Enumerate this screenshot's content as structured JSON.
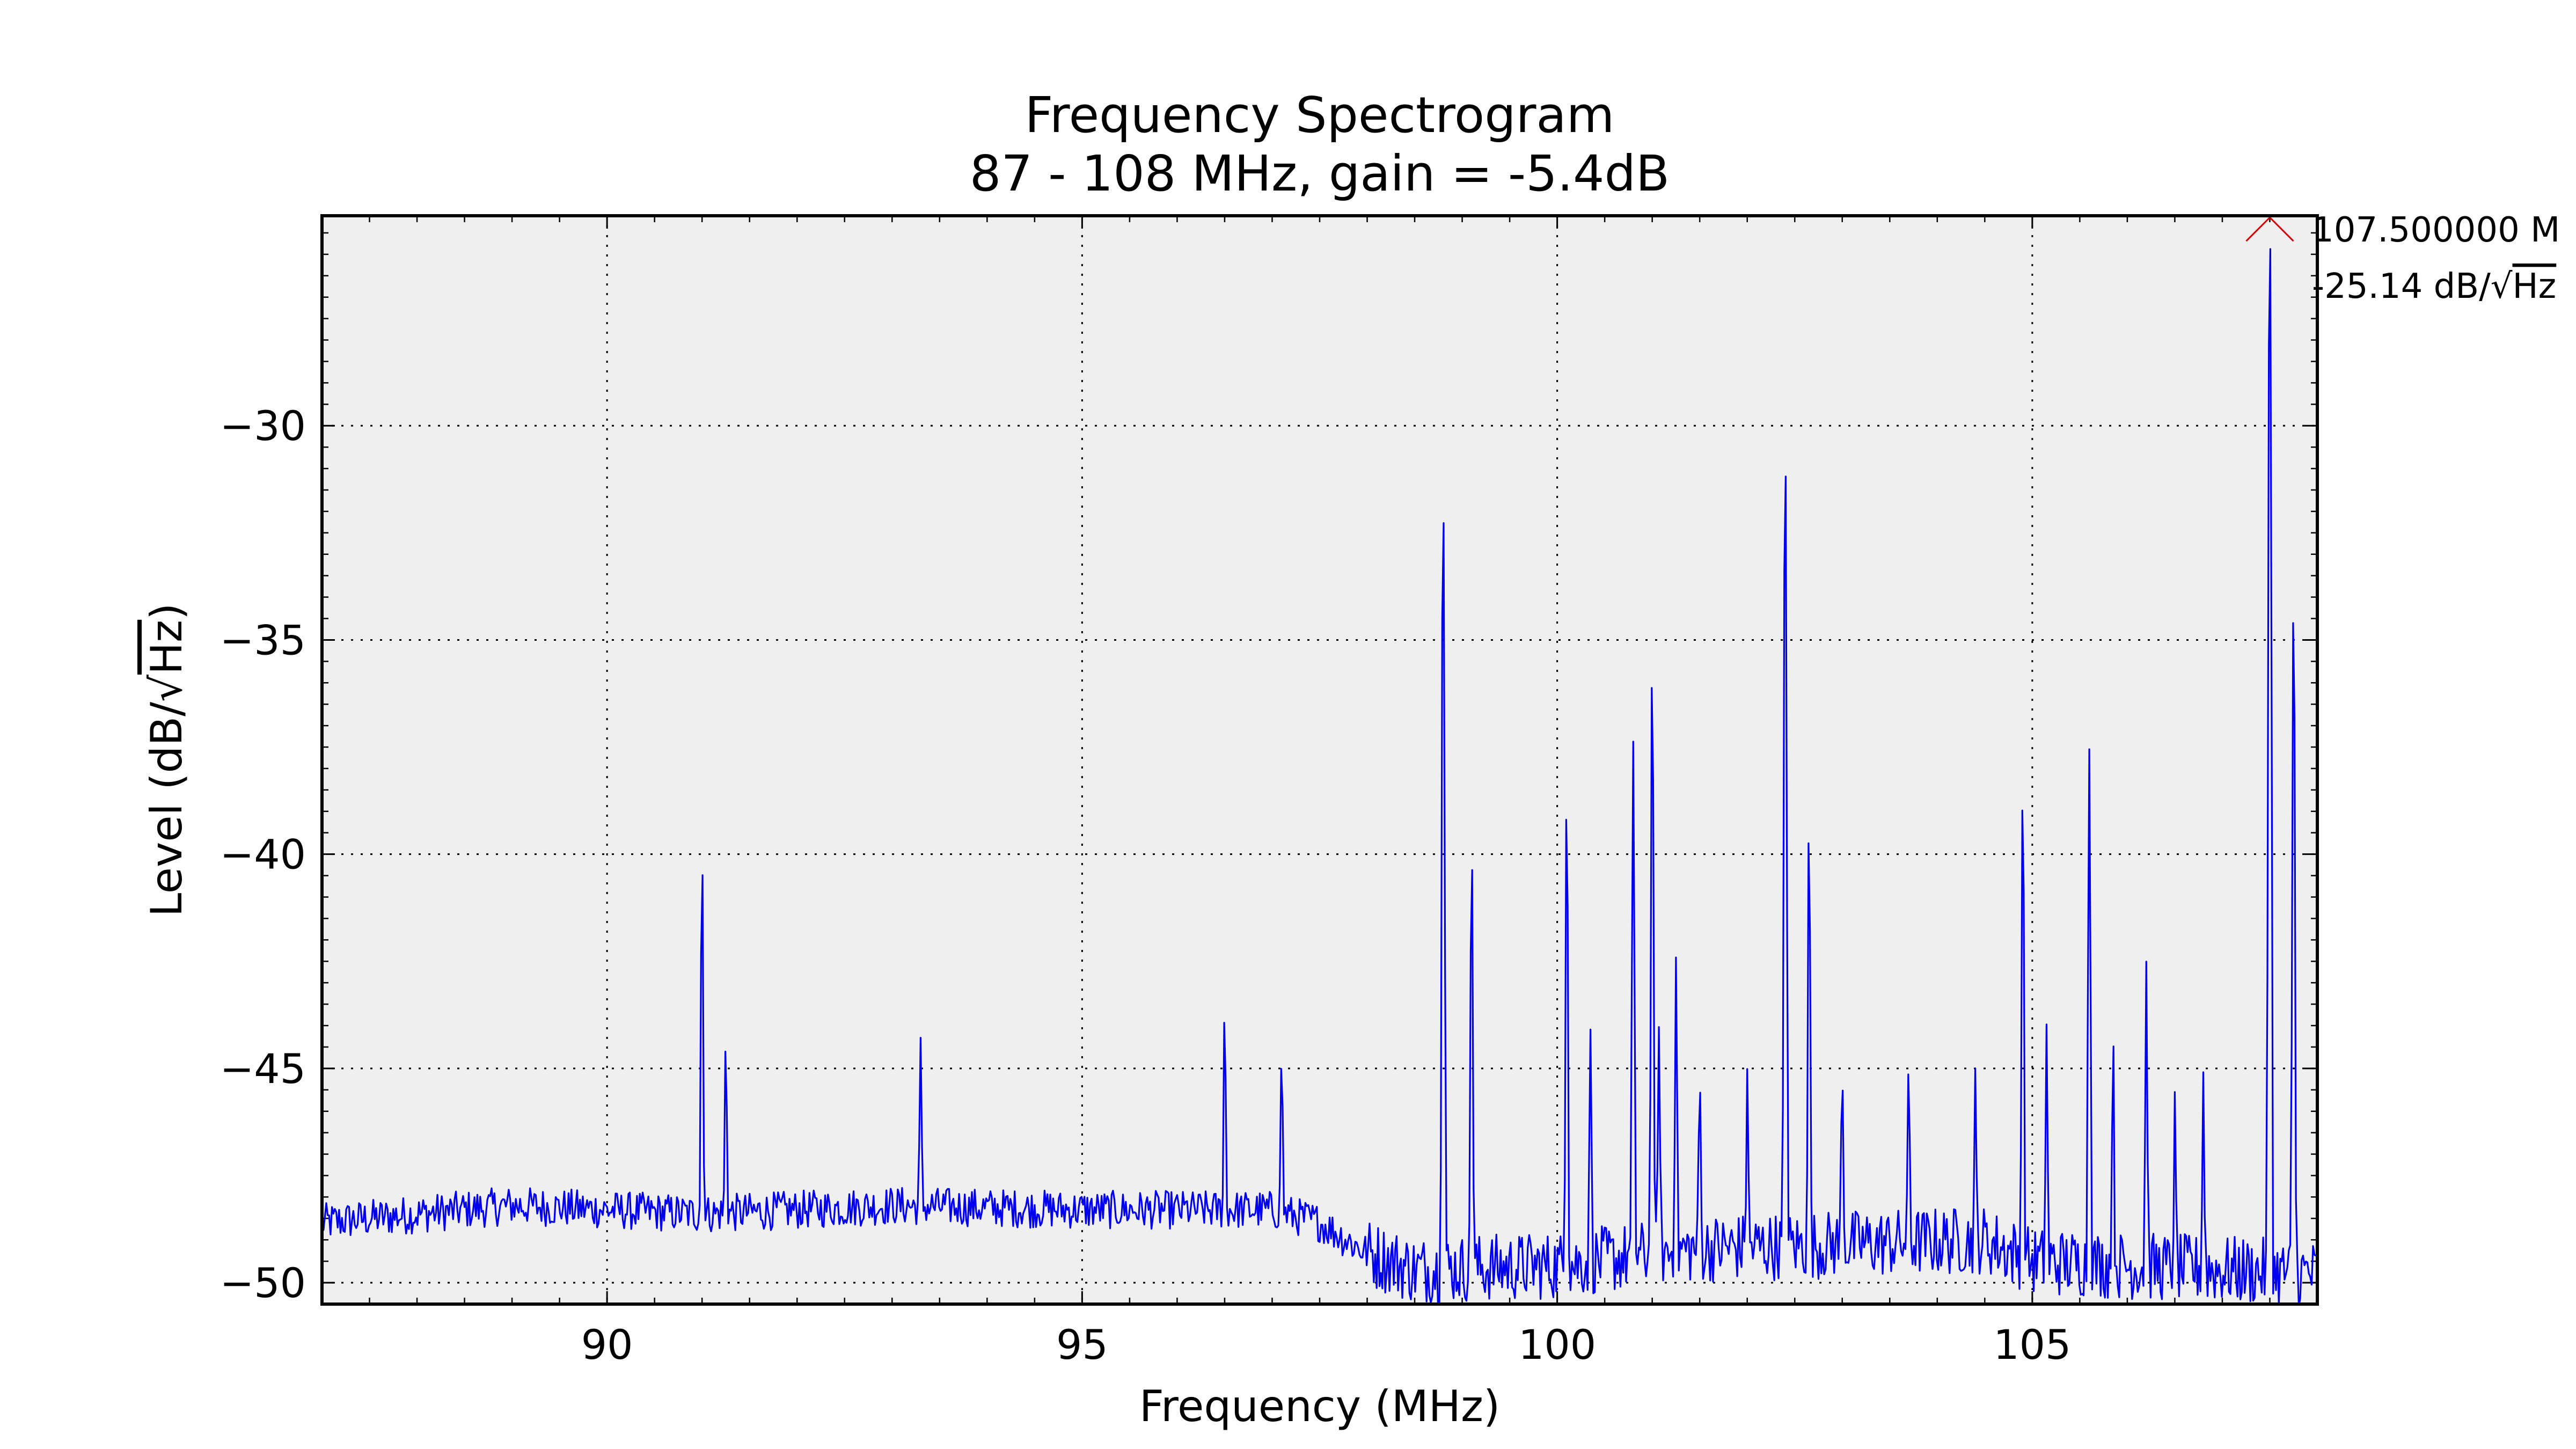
{
  "chart_data": {
    "type": "line",
    "title": "Frequency Spectrogram",
    "subtitle": "87 - 108 MHz, gain = -5.4dB",
    "xlabel": "Frequency (MHz)",
    "ylabel_prefix": "Level (dB/",
    "ylabel_sqrt": "Hz",
    "ylabel_suffix": ")",
    "xlim": [
      87,
      108
    ],
    "ylim": [
      -50.5,
      -25.1
    ],
    "x_ticks": [
      90,
      95,
      100,
      105
    ],
    "y_ticks": [
      -50,
      -45,
      -40,
      -35,
      -30
    ],
    "x_tick_labels": [
      "90",
      "95",
      "100",
      "105"
    ],
    "y_tick_labels": [
      "−50",
      "−45",
      "−40",
      "−35",
      "−30"
    ],
    "grid": true,
    "line_color": "#0000ee",
    "grid_color": "#000000",
    "background_color": "#efefef",
    "marker_color": "#dd0000",
    "noise_floor": [
      {
        "x": 87.0,
        "y": -48.6
      },
      {
        "x": 89.0,
        "y": -48.2
      },
      {
        "x": 91.0,
        "y": -48.4
      },
      {
        "x": 93.0,
        "y": -48.2
      },
      {
        "x": 95.0,
        "y": -48.3
      },
      {
        "x": 97.0,
        "y": -48.3
      },
      {
        "x": 97.5,
        "y": -48.6
      },
      {
        "x": 98.0,
        "y": -49.3
      },
      {
        "x": 98.5,
        "y": -49.7
      },
      {
        "x": 100.0,
        "y": -49.6
      },
      {
        "x": 101.5,
        "y": -49.2
      },
      {
        "x": 104.5,
        "y": -49.0
      },
      {
        "x": 105.0,
        "y": -49.5
      },
      {
        "x": 108.0,
        "y": -49.8
      }
    ],
    "peaks": [
      {
        "freq": 91.0,
        "level": -40.5
      },
      {
        "freq": 91.25,
        "level": -46.3
      },
      {
        "freq": 93.3,
        "level": -46.7
      },
      {
        "freq": 96.5,
        "level": -45.2
      },
      {
        "freq": 97.1,
        "level": -46.8
      },
      {
        "freq": 98.8,
        "level": -31.6
      },
      {
        "freq": 99.1,
        "level": -40.1
      },
      {
        "freq": 100.1,
        "level": -38.8
      },
      {
        "freq": 100.35,
        "level": -45.4
      },
      {
        "freq": 100.8,
        "level": -37.7
      },
      {
        "freq": 101.0,
        "level": -35.6
      },
      {
        "freq": 101.07,
        "level": -45.3
      },
      {
        "freq": 101.25,
        "level": -43.3
      },
      {
        "freq": 101.5,
        "level": -47.2
      },
      {
        "freq": 102.0,
        "level": -47.0
      },
      {
        "freq": 102.4,
        "level": -30.5
      },
      {
        "freq": 102.65,
        "level": -39.6
      },
      {
        "freq": 103.0,
        "level": -46.8
      },
      {
        "freq": 103.7,
        "level": -47.0
      },
      {
        "freq": 104.4,
        "level": -47.7
      },
      {
        "freq": 104.9,
        "level": -38.6
      },
      {
        "freq": 105.15,
        "level": -45.4
      },
      {
        "freq": 105.6,
        "level": -37.8
      },
      {
        "freq": 105.85,
        "level": -45.7
      },
      {
        "freq": 106.2,
        "level": -43.5
      },
      {
        "freq": 106.5,
        "level": -48.2
      },
      {
        "freq": 106.8,
        "level": -46.9
      },
      {
        "freq": 107.5,
        "level": -25.14
      },
      {
        "freq": 107.75,
        "level": -34.0
      }
    ],
    "max_marker": {
      "freq": 107.5,
      "level": -25.14,
      "label_freq": "107.500000 M",
      "label_level_prefix": "-25.14 dB/",
      "label_level_sqrt": "Hz"
    }
  }
}
